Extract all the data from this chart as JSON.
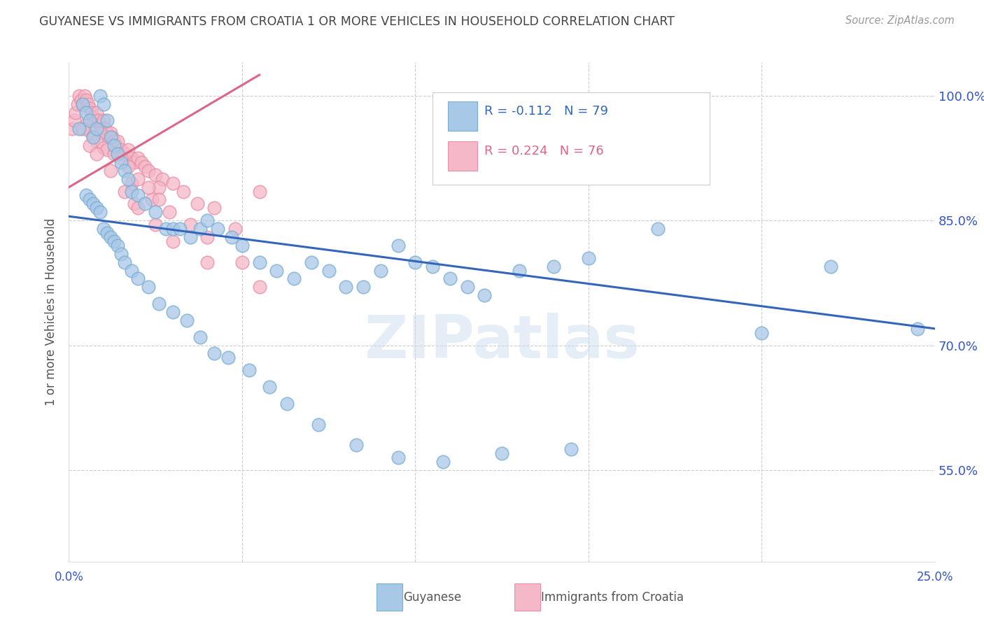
{
  "title": "GUYANESE VS IMMIGRANTS FROM CROATIA 1 OR MORE VEHICLES IN HOUSEHOLD CORRELATION CHART",
  "source": "Source: ZipAtlas.com",
  "ylabel": "1 or more Vehicles in Household",
  "xlim": [
    0.0,
    25.0
  ],
  "ylim": [
    44.0,
    104.0
  ],
  "yticks": [
    55.0,
    70.0,
    85.0,
    100.0
  ],
  "ytick_labels": [
    "55.0%",
    "70.0%",
    "85.0%",
    "100.0%"
  ],
  "xtick_vals": [
    0,
    5,
    10,
    15,
    20,
    25
  ],
  "legend_blue_r": "R = -0.112",
  "legend_blue_n": "N = 79",
  "legend_pink_r": "R = 0.224",
  "legend_pink_n": "N = 76",
  "legend_label_blue": "Guyanese",
  "legend_label_pink": "Immigrants from Croatia",
  "blue_color": "#a8c8e8",
  "pink_color": "#f4b8c8",
  "blue_edge_color": "#7aaed0",
  "pink_edge_color": "#e890a8",
  "line_blue_color": "#3366bb",
  "line_pink_color": "#dd6688",
  "watermark_text": "ZIPatlas",
  "blue_points_x": [
    0.3,
    0.4,
    0.5,
    0.6,
    0.7,
    0.8,
    0.9,
    1.0,
    1.1,
    1.2,
    1.3,
    1.4,
    1.5,
    1.6,
    1.7,
    1.8,
    2.0,
    2.2,
    2.5,
    2.8,
    3.0,
    3.2,
    3.5,
    3.8,
    4.0,
    4.3,
    4.7,
    5.0,
    5.5,
    6.0,
    6.5,
    7.0,
    7.5,
    8.0,
    8.5,
    9.0,
    9.5,
    10.0,
    10.5,
    11.0,
    11.5,
    12.0,
    13.0,
    14.0,
    15.0,
    17.0,
    20.0,
    22.0,
    24.5,
    0.5,
    0.6,
    0.7,
    0.8,
    0.9,
    1.0,
    1.1,
    1.2,
    1.3,
    1.4,
    1.5,
    1.6,
    1.8,
    2.0,
    2.3,
    2.6,
    3.0,
    3.4,
    3.8,
    4.2,
    4.6,
    5.2,
    5.8,
    6.3,
    7.2,
    8.3,
    9.5,
    10.8,
    12.5,
    14.5
  ],
  "blue_points_y": [
    96.0,
    99.0,
    98.0,
    97.0,
    95.0,
    96.0,
    100.0,
    99.0,
    97.0,
    95.0,
    94.0,
    93.0,
    92.0,
    91.0,
    90.0,
    88.5,
    88.0,
    87.0,
    86.0,
    84.0,
    84.0,
    84.0,
    83.0,
    84.0,
    85.0,
    84.0,
    83.0,
    82.0,
    80.0,
    79.0,
    78.0,
    80.0,
    79.0,
    77.0,
    77.0,
    79.0,
    82.0,
    80.0,
    79.5,
    78.0,
    77.0,
    76.0,
    79.0,
    79.5,
    80.5,
    84.0,
    71.5,
    79.5,
    72.0,
    88.0,
    87.5,
    87.0,
    86.5,
    86.0,
    84.0,
    83.5,
    83.0,
    82.5,
    82.0,
    81.0,
    80.0,
    79.0,
    78.0,
    77.0,
    75.0,
    74.0,
    73.0,
    71.0,
    69.0,
    68.5,
    67.0,
    65.0,
    63.0,
    60.5,
    58.0,
    56.5,
    56.0,
    57.0,
    57.5
  ],
  "pink_points_x": [
    0.1,
    0.15,
    0.2,
    0.25,
    0.3,
    0.35,
    0.4,
    0.45,
    0.5,
    0.55,
    0.6,
    0.65,
    0.7,
    0.75,
    0.8,
    0.85,
    0.9,
    0.95,
    1.0,
    1.05,
    1.1,
    1.15,
    1.2,
    1.25,
    1.3,
    1.35,
    1.4,
    1.5,
    1.6,
    1.7,
    1.8,
    1.9,
    2.0,
    2.1,
    2.2,
    2.3,
    2.5,
    2.7,
    3.0,
    3.3,
    3.7,
    4.2,
    4.8,
    5.5,
    1.9,
    2.4,
    0.9,
    1.4,
    1.8,
    2.6,
    0.5,
    0.6,
    0.7,
    0.8,
    1.0,
    1.1,
    1.3,
    1.5,
    1.7,
    2.0,
    2.3,
    2.6,
    2.9,
    3.5,
    4.0,
    5.0,
    0.4,
    0.6,
    0.8,
    1.2,
    1.6,
    2.0,
    2.5,
    3.0,
    4.0,
    5.5
  ],
  "pink_points_y": [
    96.0,
    97.0,
    98.0,
    99.0,
    100.0,
    99.5,
    99.0,
    100.0,
    99.5,
    99.0,
    98.5,
    98.0,
    97.5,
    97.0,
    98.0,
    97.0,
    96.5,
    96.0,
    97.0,
    96.0,
    95.5,
    95.0,
    95.5,
    95.0,
    94.5,
    94.0,
    94.5,
    93.5,
    93.0,
    93.5,
    92.5,
    92.0,
    92.5,
    92.0,
    91.5,
    91.0,
    90.5,
    90.0,
    89.5,
    88.5,
    87.0,
    86.5,
    84.0,
    88.5,
    87.0,
    87.5,
    95.5,
    93.0,
    89.5,
    89.0,
    96.5,
    95.8,
    95.0,
    94.5,
    93.8,
    93.5,
    93.0,
    92.5,
    91.5,
    90.0,
    89.0,
    87.5,
    86.0,
    84.5,
    83.0,
    80.0,
    96.0,
    94.0,
    93.0,
    91.0,
    88.5,
    86.5,
    84.5,
    82.5,
    80.0,
    77.0
  ],
  "blue_trend_x": [
    0.0,
    25.0
  ],
  "blue_trend_y": [
    85.5,
    72.0
  ],
  "pink_trend_x": [
    0.0,
    5.5
  ],
  "pink_trend_y": [
    89.0,
    102.5
  ],
  "background_color": "#ffffff",
  "grid_color": "#cccccc",
  "title_color": "#444444",
  "axis_label_color": "#555555",
  "right_axis_color": "#3355cc"
}
